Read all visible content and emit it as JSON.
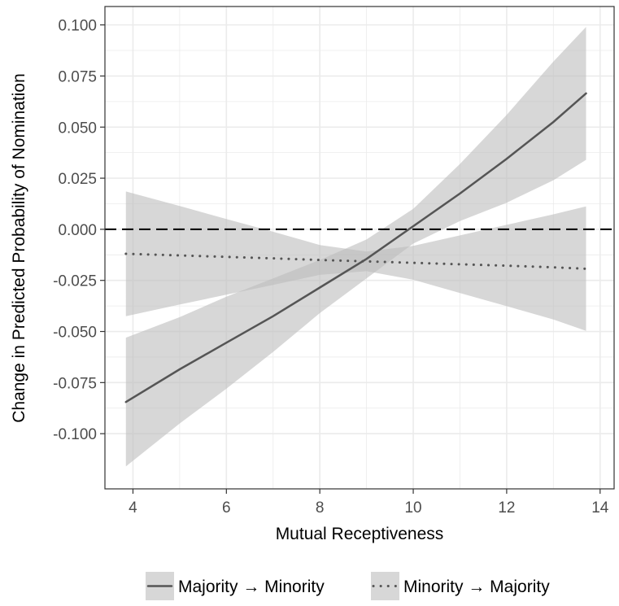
{
  "chart_data": {
    "type": "line",
    "title": "",
    "xlabel": "Mutual Receptiveness",
    "ylabel": "Change in Predicted Probability of Nomination",
    "xlim": [
      3.4,
      14.3
    ],
    "ylim": [
      -0.127,
      0.109
    ],
    "x_ticks": [
      4,
      6,
      8,
      10,
      12,
      14
    ],
    "x_tick_labels": [
      "4",
      "6",
      "8",
      "10",
      "12",
      "14"
    ],
    "y_ticks": [
      0.1,
      0.075,
      0.05,
      0.025,
      0.0,
      -0.025,
      -0.05,
      -0.075,
      -0.1
    ],
    "y_tick_labels": [
      "0.100",
      "0.075",
      "0.050",
      "0.025",
      "0.000",
      "-0.025",
      "-0.050",
      "-0.075",
      "-0.100"
    ],
    "grid": true,
    "reference_line": {
      "y": 0.0,
      "style": "dashed"
    },
    "legend_position": "bottom",
    "colors": {
      "line": "#555555",
      "ribbon": "#bdbdbd",
      "grid": "#ebebeb",
      "panel_border": "#333333"
    },
    "series": [
      {
        "name": "Majority → Minority",
        "line_style": "solid",
        "x": [
          3.85,
          5.0,
          6.0,
          7.0,
          8.0,
          9.0,
          10.0,
          11.0,
          12.0,
          13.0,
          13.7
        ],
        "y": [
          -0.0845,
          -0.0685,
          -0.0555,
          -0.0425,
          -0.0285,
          -0.0145,
          0.0015,
          0.0175,
          0.0345,
          0.0525,
          0.0665
        ],
        "lower": [
          -0.116,
          -0.095,
          -0.078,
          -0.06,
          -0.041,
          -0.024,
          -0.007,
          0.004,
          0.013,
          0.024,
          0.034
        ],
        "upper": [
          -0.053,
          -0.043,
          -0.033,
          -0.024,
          -0.015,
          -0.005,
          0.01,
          0.032,
          0.056,
          0.082,
          0.099
        ]
      },
      {
        "name": "Minority → Majority",
        "line_style": "dotted",
        "x": [
          3.85,
          5.0,
          6.0,
          7.0,
          8.0,
          9.0,
          10.0,
          11.0,
          12.0,
          13.0,
          13.7
        ],
        "y": [
          -0.012,
          -0.0128,
          -0.0135,
          -0.0142,
          -0.015,
          -0.0157,
          -0.0164,
          -0.0171,
          -0.0178,
          -0.0186,
          -0.0193
        ],
        "lower": [
          -0.0425,
          -0.0368,
          -0.032,
          -0.0272,
          -0.0223,
          -0.0205,
          -0.0247,
          -0.0312,
          -0.0376,
          -0.0441,
          -0.0497
        ],
        "upper": [
          0.0185,
          0.0114,
          0.005,
          -0.0012,
          -0.0077,
          -0.0109,
          -0.0081,
          -0.003,
          0.0022,
          0.0073,
          0.0112
        ]
      }
    ]
  }
}
